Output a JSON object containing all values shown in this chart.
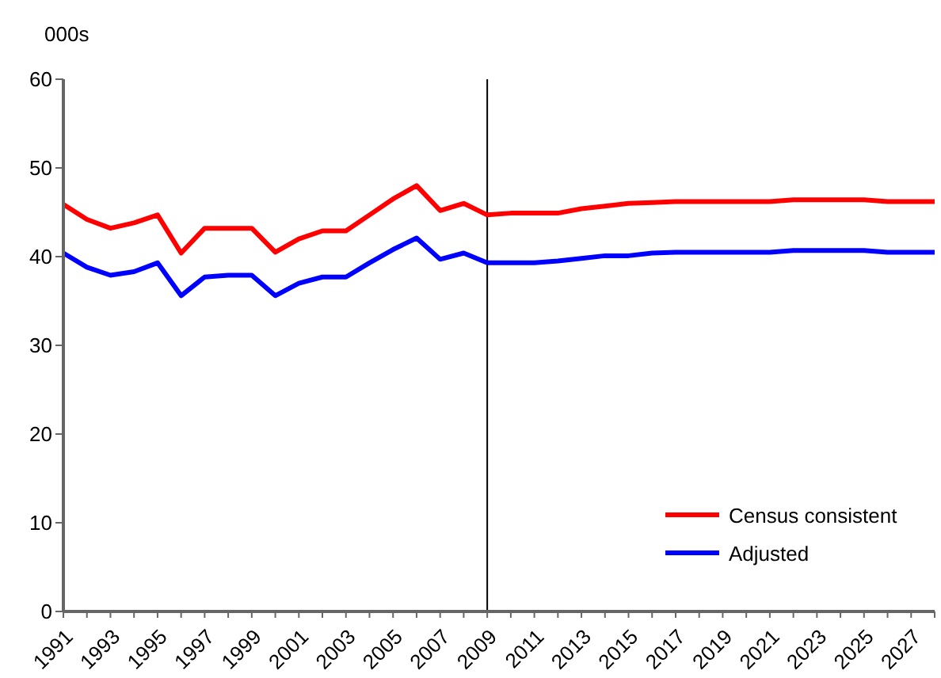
{
  "chart_data": {
    "type": "line",
    "ylabel": "000s",
    "categories": [
      "1991",
      null,
      "1993",
      null,
      "1995",
      null,
      "1997",
      null,
      "1999",
      null,
      "2001",
      null,
      "2003",
      null,
      "2005",
      null,
      "2007",
      null,
      "2009",
      null,
      "2011",
      null,
      "2013",
      null,
      "2015",
      null,
      "2017",
      null,
      "2019",
      null,
      "2021",
      null,
      "2023",
      null,
      "2025",
      null,
      "2027",
      null
    ],
    "series": [
      {
        "name": "Census consistent",
        "color": "#ff0000",
        "values": [
          45.9,
          44.2,
          43.2,
          43.8,
          44.7,
          40.4,
          43.2,
          43.2,
          43.2,
          40.5,
          42.0,
          42.9,
          42.9,
          44.7,
          46.5,
          48.0,
          45.2,
          46.0,
          44.7,
          44.9,
          44.9,
          44.9,
          45.4,
          45.7,
          46.0,
          46.1,
          46.2,
          46.2,
          46.2,
          46.2,
          46.2,
          46.4,
          46.4,
          46.4,
          46.4,
          46.2,
          46.2,
          46.2
        ]
      },
      {
        "name": "Adjusted",
        "color": "#0000ff",
        "values": [
          40.4,
          38.8,
          37.9,
          38.3,
          39.3,
          35.6,
          37.7,
          37.9,
          37.9,
          35.6,
          37.0,
          37.7,
          37.7,
          39.3,
          40.8,
          42.1,
          39.7,
          40.4,
          39.3,
          39.3,
          39.3,
          39.5,
          39.8,
          40.1,
          40.1,
          40.4,
          40.5,
          40.5,
          40.5,
          40.5,
          40.5,
          40.7,
          40.7,
          40.7,
          40.7,
          40.5,
          40.5,
          40.5
        ]
      }
    ],
    "ylim": [
      0,
      60
    ],
    "yticks": [
      0,
      10,
      20,
      30,
      40,
      50,
      60
    ],
    "ref_lines": [
      {
        "axis": "x",
        "value": "2009",
        "color": "#000000"
      }
    ],
    "grid": false,
    "legend": "bottom right",
    "marker": "none",
    "line_style": "solid"
  }
}
